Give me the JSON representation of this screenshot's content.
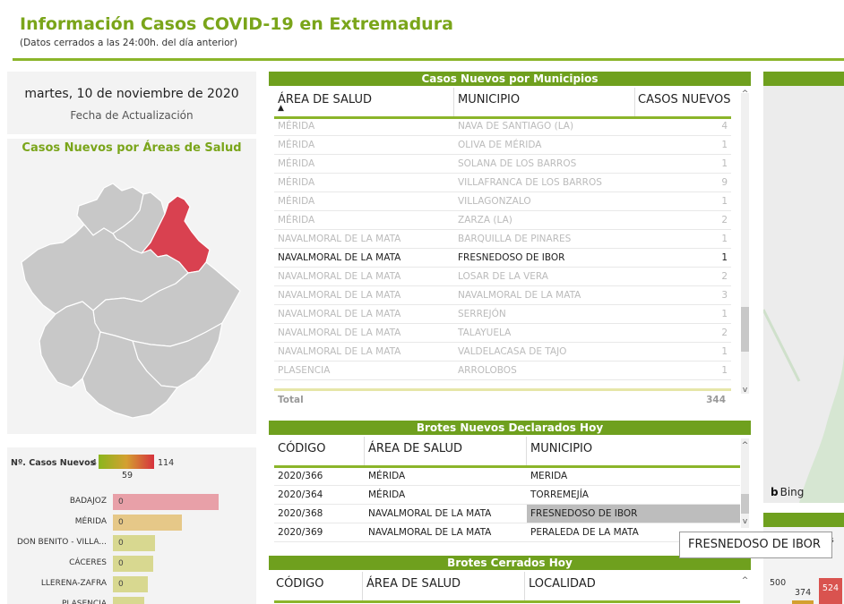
{
  "header": {
    "title": "Información Casos COVID-19 en Extremadura",
    "subtitle": "(Datos cerrados a las 24:00h. del día anterior)"
  },
  "update": {
    "date": "martes, 10 de noviembre de 2020",
    "label": "Fecha de Actualización"
  },
  "areas_map": {
    "title": "Casos Nuevos por Áreas de Salud",
    "selected_area": "Navalmoral de la Mata"
  },
  "areas_bars": {
    "legend_label": "Nº. Casos Nuevos",
    "legend_min": "4",
    "legend_mid": "59",
    "legend_max": "114",
    "rows": [
      {
        "name": "BADAJOZ",
        "value": "0",
        "color": "#e8a0a8",
        "fill": 1.0
      },
      {
        "name": "MÉRIDA",
        "value": "0",
        "color": "#e6c888",
        "fill": 0.65
      },
      {
        "name": "DON BENITO - VILLA...",
        "value": "0",
        "color": "#d8d890",
        "fill": 0.4
      },
      {
        "name": "CÁCERES",
        "value": "0",
        "color": "#d8d890",
        "fill": 0.38
      },
      {
        "name": "LLERENA-ZAFRA",
        "value": "0",
        "color": "#d8d890",
        "fill": 0.33
      },
      {
        "name": "PLASENCIA",
        "value": "",
        "color": "#d8d890",
        "fill": 0.3
      }
    ]
  },
  "municipios": {
    "title": "Casos Nuevos por Municipios",
    "columns": [
      "ÁREA DE SALUD",
      "MUNICIPIO",
      "CASOS NUEVOS"
    ],
    "rows": [
      [
        "MÉRIDA",
        "NAVA DE SANTIAGO (LA)",
        "4"
      ],
      [
        "MÉRIDA",
        "OLIVA DE MÉRIDA",
        "1"
      ],
      [
        "MÉRIDA",
        "SOLANA DE LOS BARROS",
        "1"
      ],
      [
        "MÉRIDA",
        "VILLAFRANCA DE LOS BARROS",
        "9"
      ],
      [
        "MÉRIDA",
        "VILLAGONZALO",
        "1"
      ],
      [
        "MÉRIDA",
        "ZARZA (LA)",
        "2"
      ],
      [
        "NAVALMORAL DE LA MATA",
        "BARQUILLA DE PINARES",
        "1"
      ],
      [
        "NAVALMORAL DE LA MATA",
        "FRESNEDOSO DE IBOR",
        "1"
      ],
      [
        "NAVALMORAL DE LA MATA",
        "LOSAR DE LA VERA",
        "2"
      ],
      [
        "NAVALMORAL DE LA MATA",
        "NAVALMORAL DE LA MATA",
        "3"
      ],
      [
        "NAVALMORAL DE LA MATA",
        "SERREJÓN",
        "1"
      ],
      [
        "NAVALMORAL DE LA MATA",
        "TALAYUELA",
        "2"
      ],
      [
        "NAVALMORAL DE LA MATA",
        "VALDELACASA DE TAJO",
        "1"
      ],
      [
        "PLASENCIA",
        "ARROLOBOS",
        "1"
      ]
    ],
    "selected_row": 7,
    "total_label": "Total",
    "total_value": "344"
  },
  "brotes_nuevos": {
    "title": "Brotes Nuevos Declarados Hoy",
    "columns": [
      "CÓDIGO",
      "ÁREA DE SALUD",
      "MUNICIPIO"
    ],
    "rows": [
      [
        "2020/366",
        "MÉRIDA",
        "MERIDA"
      ],
      [
        "2020/364",
        "MÉRIDA",
        "TORREMEJÍA"
      ],
      [
        "2020/368",
        "NAVALMORAL DE LA MATA",
        "FRESNEDOSO DE IBOR"
      ],
      [
        "2020/369",
        "NAVALMORAL DE LA MATA",
        "PERALEDA DE LA MATA"
      ]
    ],
    "highlighted_row": 2
  },
  "brotes_cerrados": {
    "title": "Brotes Cerrados Hoy",
    "columns": [
      "CÓDIGO",
      "ÁREA DE SALUD",
      "LOCALIDAD"
    ]
  },
  "right_map": {
    "attribution": "Bing"
  },
  "right_chart": {
    "tick": "500",
    "bar_a": "374",
    "bar_b": "524",
    "partial_label": "s"
  },
  "tooltip": {
    "text": "FRESNEDOSO DE IBOR"
  },
  "colors": {
    "accent": "#6fa01e",
    "title_green": "#7aa51a",
    "selected_area": "#d94150",
    "area_default": "#c8c8c8"
  }
}
